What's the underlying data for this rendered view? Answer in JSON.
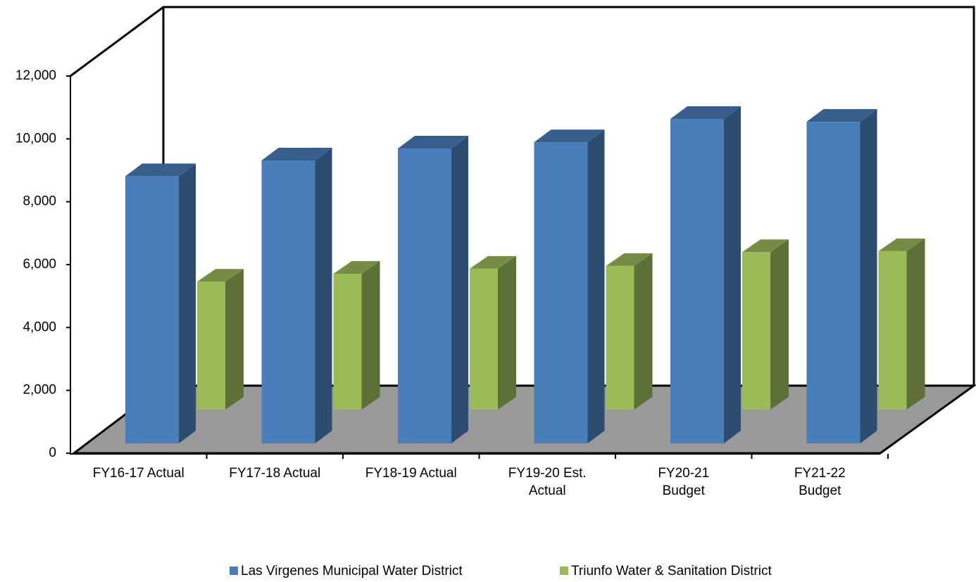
{
  "chart_data": {
    "type": "bar3d",
    "categories": [
      "FY16-17 Actual",
      "FY17-18 Actual",
      "FY18-19 Actual",
      "FY19-20 Est.\nActual",
      "FY20-21\nBudget",
      "FY21-22\nBudget"
    ],
    "series": [
      {
        "name": "Las Virgenes Municipal Water District",
        "color": "#4a7ebb",
        "values": [
          8500,
          9000,
          9380,
          9580,
          10320,
          10230
        ]
      },
      {
        "name": "Triunfo Water & Sanitation District",
        "color": "#9bbb59",
        "values": [
          4070,
          4320,
          4480,
          4570,
          5010,
          5040
        ]
      }
    ],
    "ylim": [
      0,
      12000
    ],
    "yticks": [
      0,
      {
        "value": 2000,
        "label": "2,000"
      },
      {
        "value": 4000,
        "label": "4,000"
      },
      {
        "value": 6000,
        "label": "6,000"
      },
      {
        "value": 8000,
        "label": "8,000"
      },
      {
        "value": 10000,
        "label": "10,000"
      },
      {
        "value": 12000,
        "label": "12,000"
      }
    ],
    "legend": "bottom"
  }
}
